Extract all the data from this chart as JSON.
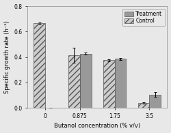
{
  "x_labels": [
    "0",
    "0.875",
    "1.75",
    "3.5"
  ],
  "control_values": [
    0.665,
    0.415,
    0.375,
    0.04
  ],
  "treatment_values": [
    0.0,
    0.425,
    0.385,
    0.105
  ],
  "control_errors": [
    0.005,
    0.06,
    0.008,
    0.006
  ],
  "treatment_errors": [
    0.0,
    0.008,
    0.008,
    0.018
  ],
  "treatment_color": "#999999",
  "control_face_color": "#cccccc",
  "control_hatch": "////",
  "ylabel": "Specific growth rate (h⁻¹)",
  "xlabel": "Butanol concentration (% v/v)",
  "ylim": [
    0.0,
    0.8
  ],
  "yticks": [
    0.0,
    0.2,
    0.4,
    0.6,
    0.8
  ],
  "bar_width": 0.33,
  "legend_labels": [
    "Treatment",
    "Control"
  ],
  "bg_color": "#e8e8e8",
  "axis_fontsize": 6,
  "tick_fontsize": 5.5,
  "legend_fontsize": 5.5
}
